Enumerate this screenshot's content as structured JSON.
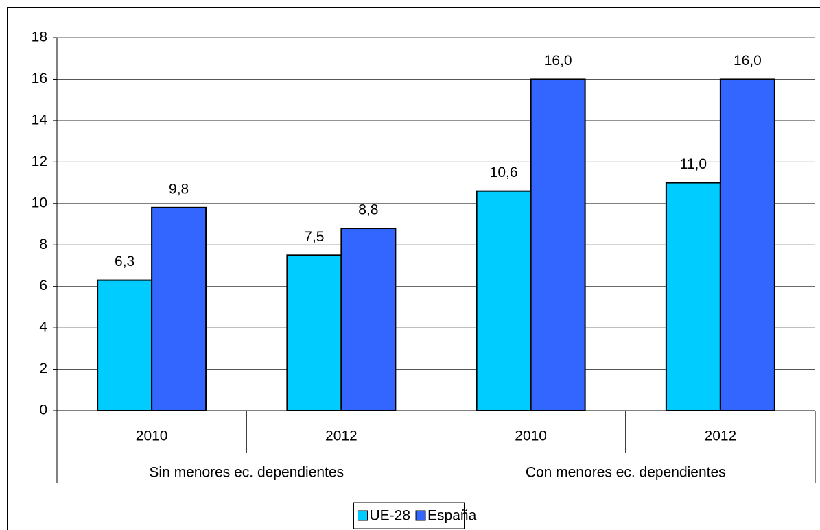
{
  "chart_data": {
    "type": "bar",
    "categories": [
      "2010",
      "2012",
      "2010",
      "2012"
    ],
    "groups": [
      "Sin menores ec. dependientes",
      "Con menores ec. dependientes"
    ],
    "series": [
      {
        "name": "UE-28",
        "color": "#00ccff",
        "values": [
          6.3,
          7.5,
          10.6,
          11.0
        ],
        "value_labels": [
          "6,3",
          "7,5",
          "10,6",
          "11,0"
        ]
      },
      {
        "name": "España",
        "color": "#3366ff",
        "values": [
          9.8,
          8.8,
          16.0,
          16.0
        ],
        "value_labels": [
          "9,8",
          "8,8",
          "16,0",
          "16,0"
        ]
      }
    ],
    "ylim": [
      0,
      18
    ],
    "yticks": [
      0,
      2,
      4,
      6,
      8,
      10,
      12,
      14,
      16,
      18
    ],
    "grid": true,
    "legend": "bottom"
  }
}
